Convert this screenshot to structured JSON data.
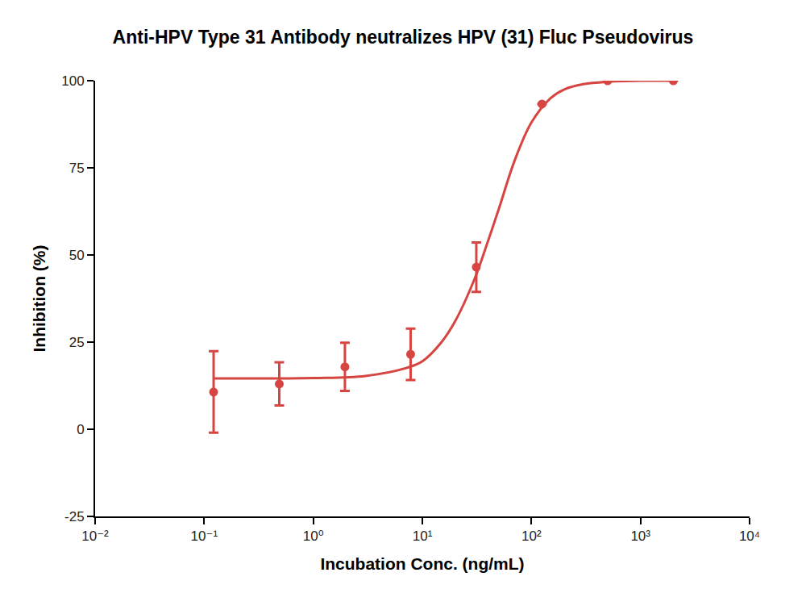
{
  "chart_data": {
    "type": "scatter",
    "title": "Anti-HPV Type 31 Antibody neutralizes HPV (31) Fluc Pseudovirus",
    "x_label": "Incubation Conc. (ng/mL)",
    "y_label": "Inhibition (%)",
    "log": "x",
    "grid": false,
    "xlim": [
      0.01,
      10000
    ],
    "ylim": [
      -25,
      100
    ],
    "xticks": [
      {
        "value": 0.01,
        "label": "10⁻²"
      },
      {
        "value": 0.1,
        "label": "10⁻¹"
      },
      {
        "value": 1,
        "label": "10⁰"
      },
      {
        "value": 10,
        "label": "10¹"
      },
      {
        "value": 100,
        "label": "10²"
      },
      {
        "value": 1000,
        "label": "10³"
      },
      {
        "value": 10000,
        "label": "10⁴"
      }
    ],
    "yticks": [
      -25,
      0,
      25,
      50,
      75,
      100
    ],
    "series": [
      {
        "type": "scatter",
        "color": "#d64541",
        "marker": "circle",
        "x": [
          0.122,
          0.488,
          1.95,
          7.81,
          31.25,
          125,
          500,
          2000
        ],
        "values": [
          10.7,
          13.0,
          17.9,
          21.5,
          46.5,
          93.3,
          100,
          100
        ],
        "error": [
          11.7,
          6.2,
          6.9,
          7.4,
          7.1,
          0,
          0,
          0
        ]
      },
      {
        "type": "line",
        "color": "#d64541",
        "line_style": "solid",
        "x": [
          0.12,
          1,
          3,
          7,
          10,
          15,
          20,
          30,
          40,
          50,
          70,
          100,
          150,
          200,
          300,
          500,
          1000,
          2000
        ],
        "values": [
          14.6,
          14.7,
          15.3,
          17.5,
          19.5,
          25,
          31,
          43,
          54,
          63,
          77,
          88,
          95,
          97.5,
          99,
          99.7,
          100,
          100
        ]
      }
    ]
  }
}
